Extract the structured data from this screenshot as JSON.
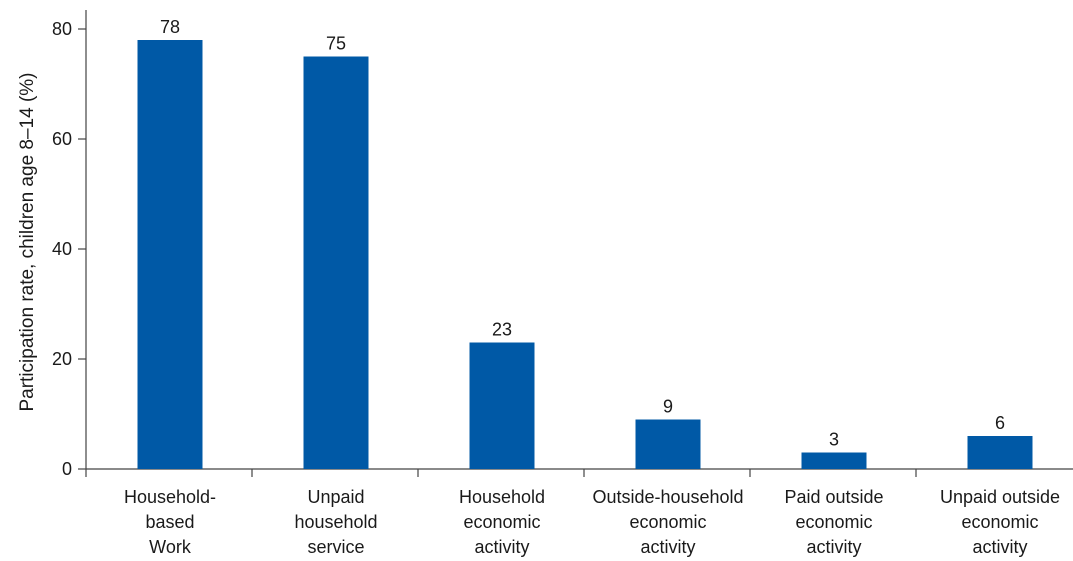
{
  "chart_data": {
    "type": "bar",
    "categories": [
      [
        "Household-",
        "based",
        "Work"
      ],
      [
        "Unpaid",
        "household",
        "service"
      ],
      [
        "Household",
        "economic",
        "activity"
      ],
      [
        "Outside-household",
        "economic",
        "activity"
      ],
      [
        "Paid outside",
        "economic",
        "activity"
      ],
      [
        "Unpaid outside",
        "economic",
        "activity"
      ]
    ],
    "values": [
      78,
      75,
      23,
      9,
      3,
      6
    ],
    "value_labels": [
      "78",
      "75",
      "23",
      "9",
      "3",
      "6"
    ],
    "ylabel": "Participation rate, children age 8–14 (%)",
    "xlabel": "",
    "ylim": [
      0,
      80
    ],
    "yticks": [
      0,
      20,
      40,
      60,
      80
    ],
    "grid": false,
    "colors": {
      "bar": "#0059a6",
      "axis": "#444444",
      "text": "#1a1a1a"
    }
  }
}
